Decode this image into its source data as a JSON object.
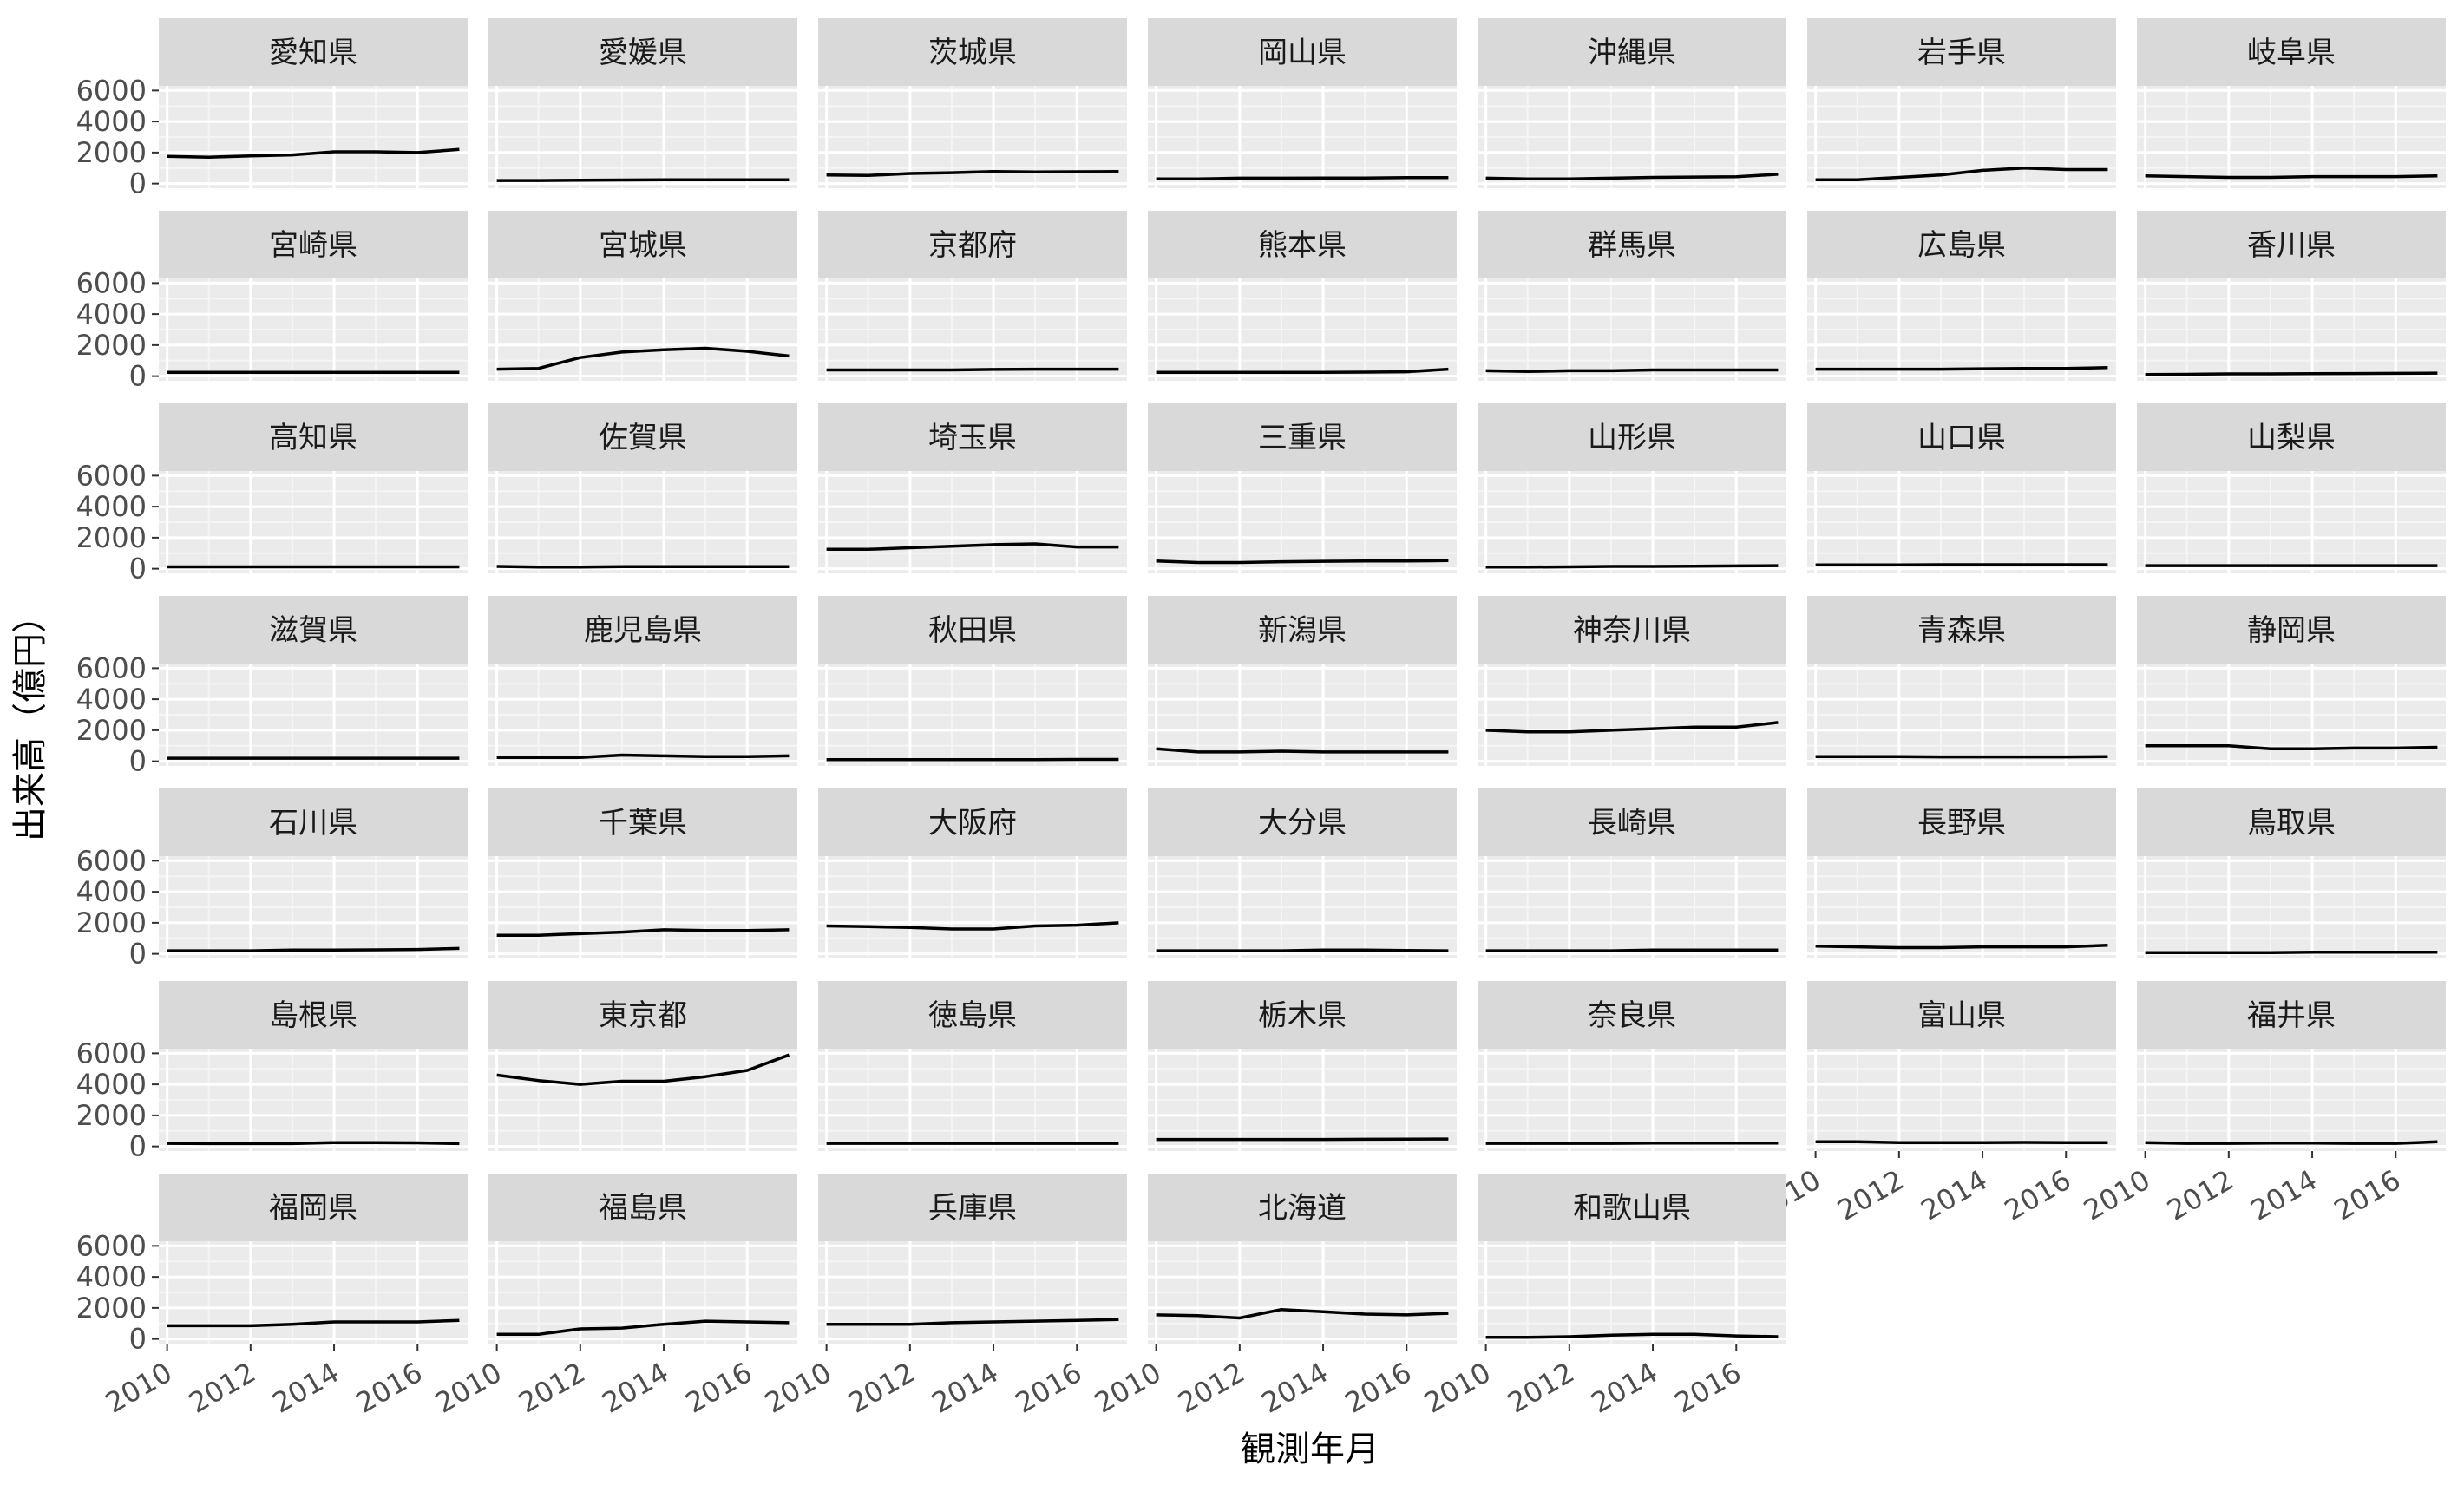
{
  "chart_data": {
    "type": "line",
    "facet": true,
    "xlabel": "観測年月",
    "ylabel": "出来高（億円）",
    "xlim": [
      2009.8,
      2017.2
    ],
    "ylim": [
      -300,
      6300
    ],
    "x_ticks": [
      2010,
      2012,
      2014,
      2016
    ],
    "y_ticks": [
      0,
      2000,
      4000,
      6000
    ],
    "x_minor": [
      2011,
      2013,
      2015
    ],
    "y_minor": [
      1000,
      3000,
      5000
    ],
    "x": [
      2010,
      2011,
      2012,
      2013,
      2014,
      2015,
      2016,
      2017
    ],
    "grid": true,
    "panels": [
      {
        "name": "愛知県",
        "values": [
          1750,
          1700,
          1780,
          1850,
          2050,
          2050,
          2000,
          2200
        ]
      },
      {
        "name": "愛媛県",
        "values": [
          200,
          200,
          220,
          230,
          240,
          240,
          240,
          250
        ]
      },
      {
        "name": "茨城県",
        "values": [
          550,
          520,
          650,
          700,
          780,
          750,
          760,
          780
        ]
      },
      {
        "name": "岡山県",
        "values": [
          300,
          300,
          350,
          350,
          360,
          360,
          380,
          390
        ]
      },
      {
        "name": "沖縄県",
        "values": [
          350,
          300,
          300,
          350,
          400,
          420,
          440,
          600
        ]
      },
      {
        "name": "岩手県",
        "values": [
          250,
          250,
          400,
          550,
          850,
          1000,
          900,
          900
        ]
      },
      {
        "name": "岐阜県",
        "values": [
          500,
          450,
          400,
          400,
          450,
          450,
          450,
          500
        ]
      },
      {
        "name": "宮崎県",
        "values": [
          250,
          250,
          250,
          250,
          250,
          250,
          250,
          250
        ]
      },
      {
        "name": "宮城県",
        "values": [
          450,
          500,
          1200,
          1550,
          1700,
          1800,
          1600,
          1300
        ]
      },
      {
        "name": "京都府",
        "values": [
          400,
          400,
          400,
          400,
          430,
          450,
          450,
          450
        ]
      },
      {
        "name": "熊本県",
        "values": [
          250,
          250,
          250,
          250,
          250,
          260,
          280,
          450
        ]
      },
      {
        "name": "群馬県",
        "values": [
          350,
          300,
          350,
          350,
          400,
          400,
          400,
          400
        ]
      },
      {
        "name": "広島県",
        "values": [
          450,
          450,
          450,
          450,
          480,
          500,
          500,
          550
        ]
      },
      {
        "name": "香川県",
        "values": [
          100,
          120,
          150,
          150,
          160,
          170,
          180,
          200
        ]
      },
      {
        "name": "高知県",
        "values": [
          120,
          120,
          120,
          120,
          120,
          120,
          120,
          120
        ]
      },
      {
        "name": "佐賀県",
        "values": [
          150,
          100,
          100,
          130,
          130,
          130,
          130,
          130
        ]
      },
      {
        "name": "埼玉県",
        "values": [
          1250,
          1250,
          1350,
          1450,
          1550,
          1600,
          1400,
          1400
        ]
      },
      {
        "name": "三重県",
        "values": [
          500,
          400,
          400,
          450,
          480,
          500,
          500,
          520
        ]
      },
      {
        "name": "山形県",
        "values": [
          100,
          100,
          120,
          150,
          150,
          160,
          180,
          200
        ]
      },
      {
        "name": "山口県",
        "values": [
          250,
          250,
          250,
          260,
          260,
          260,
          260,
          260
        ]
      },
      {
        "name": "山梨県",
        "values": [
          200,
          200,
          200,
          200,
          200,
          200,
          200,
          200
        ]
      },
      {
        "name": "滋賀県",
        "values": [
          200,
          200,
          200,
          200,
          200,
          200,
          200,
          200
        ]
      },
      {
        "name": "鹿児島県",
        "values": [
          250,
          250,
          250,
          400,
          350,
          300,
          300,
          350
        ]
      },
      {
        "name": "秋田県",
        "values": [
          100,
          100,
          100,
          100,
          100,
          100,
          120,
          120
        ]
      },
      {
        "name": "新潟県",
        "values": [
          800,
          600,
          600,
          650,
          600,
          600,
          600,
          600
        ]
      },
      {
        "name": "神奈川県",
        "values": [
          2000,
          1900,
          1900,
          2000,
          2100,
          2200,
          2200,
          2500
        ]
      },
      {
        "name": "青森県",
        "values": [
          300,
          300,
          300,
          280,
          280,
          280,
          280,
          300
        ]
      },
      {
        "name": "静岡県",
        "values": [
          1000,
          1000,
          1000,
          800,
          800,
          850,
          850,
          900
        ]
      },
      {
        "name": "石川県",
        "values": [
          200,
          200,
          200,
          250,
          250,
          260,
          280,
          350
        ]
      },
      {
        "name": "千葉県",
        "values": [
          1200,
          1200,
          1300,
          1400,
          1550,
          1500,
          1500,
          1550
        ]
      },
      {
        "name": "大阪府",
        "values": [
          1800,
          1750,
          1700,
          1600,
          1600,
          1800,
          1850,
          2000
        ]
      },
      {
        "name": "大分県",
        "values": [
          200,
          200,
          200,
          200,
          250,
          250,
          220,
          200
        ]
      },
      {
        "name": "長崎県",
        "values": [
          200,
          200,
          200,
          200,
          250,
          250,
          250,
          250
        ]
      },
      {
        "name": "長野県",
        "values": [
          500,
          450,
          400,
          400,
          450,
          450,
          450,
          550
        ]
      },
      {
        "name": "鳥取県",
        "values": [
          80,
          80,
          80,
          80,
          100,
          100,
          100,
          100
        ]
      },
      {
        "name": "島根県",
        "values": [
          200,
          180,
          180,
          180,
          250,
          250,
          230,
          180
        ]
      },
      {
        "name": "東京都",
        "values": [
          4600,
          4250,
          4000,
          4200,
          4200,
          4500,
          4900,
          5900
        ]
      },
      {
        "name": "徳島県",
        "values": [
          200,
          200,
          200,
          200,
          200,
          200,
          200,
          200
        ]
      },
      {
        "name": "栃木県",
        "values": [
          450,
          450,
          450,
          450,
          450,
          460,
          470,
          480
        ]
      },
      {
        "name": "奈良県",
        "values": [
          200,
          200,
          200,
          200,
          220,
          220,
          220,
          220
        ]
      },
      {
        "name": "富山県",
        "values": [
          300,
          300,
          250,
          250,
          250,
          260,
          250,
          250
        ]
      },
      {
        "name": "福井県",
        "values": [
          250,
          200,
          200,
          220,
          220,
          200,
          200,
          300
        ]
      },
      {
        "name": "福岡県",
        "values": [
          850,
          850,
          850,
          950,
          1100,
          1100,
          1100,
          1200
        ]
      },
      {
        "name": "福島県",
        "values": [
          300,
          300,
          650,
          700,
          950,
          1150,
          1100,
          1050
        ]
      },
      {
        "name": "兵庫県",
        "values": [
          950,
          950,
          950,
          1050,
          1100,
          1150,
          1200,
          1250
        ]
      },
      {
        "name": "北海道",
        "values": [
          1550,
          1500,
          1350,
          1900,
          1750,
          1600,
          1550,
          1650
        ]
      },
      {
        "name": "和歌山県",
        "values": [
          100,
          100,
          150,
          250,
          300,
          300,
          200,
          150
        ]
      }
    ]
  }
}
